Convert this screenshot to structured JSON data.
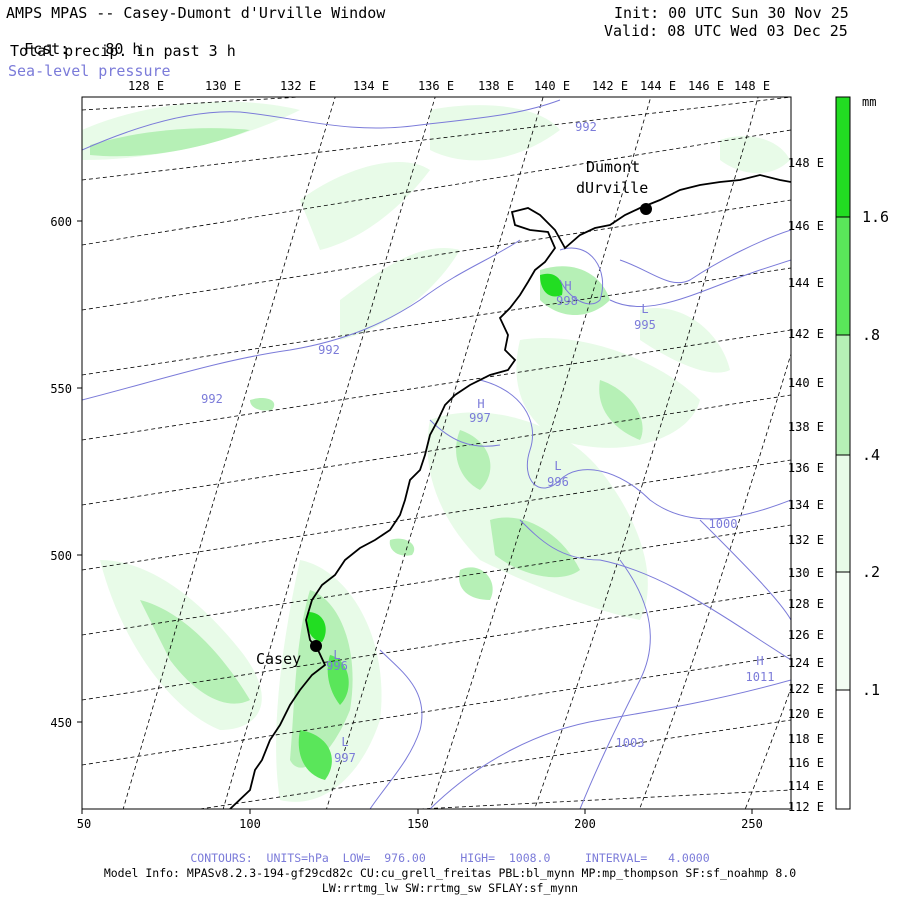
{
  "header": {
    "title": "AMPS MPAS -- Casey-Dumont d'Urville Window",
    "forecast_label": "Fcst:",
    "forecast_value": "80 h",
    "init": "Init: 00 UTC Sun 30 Nov 25",
    "valid": "Valid: 08 UTC Wed 03 Dec 25",
    "field_primary": "Total precip. in past 3 h",
    "field_secondary": "Sea-level pressure"
  },
  "colors": {
    "contour": "#7b7bd9",
    "coast": "#000000",
    "precip_light": "#e8fbe8",
    "precip_mid": "#b6f0b6",
    "precip_high": "#5ae65a",
    "precip_max": "#22dd22"
  },
  "map": {
    "top_lon_labels": [
      "128 E",
      "130 E",
      "132 E",
      "134 E",
      "136 E",
      "138 E",
      "140 E",
      "142 E",
      "144 E",
      "146 E",
      "148 E"
    ],
    "right_lon_labels": [
      "148 E",
      "146 E",
      "144 E",
      "142 E",
      "140 E",
      "138 E",
      "136 E",
      "134 E",
      "132 E",
      "130 E",
      "128 E",
      "126 E",
      "124 E",
      "122 E",
      "120 E",
      "118 E",
      "116 E",
      "114 E",
      "112 E"
    ],
    "x_ticks": [
      "50",
      "100",
      "150",
      "200",
      "250"
    ],
    "y_ticks": [
      "600",
      "550",
      "500",
      "450"
    ],
    "stations": [
      {
        "name": "Casey",
        "label": "Casey"
      },
      {
        "name": "Dumont",
        "label_line1": "Dumont",
        "label_line2": "dUrville"
      }
    ],
    "pressure_labels": [
      {
        "kind": "",
        "value": "992"
      },
      {
        "kind": "",
        "value": "992"
      },
      {
        "kind": "",
        "value": "992"
      },
      {
        "kind": "H",
        "value": "998"
      },
      {
        "kind": "L",
        "value": "995"
      },
      {
        "kind": "H",
        "value": "997"
      },
      {
        "kind": "L",
        "value": "996"
      },
      {
        "kind": "",
        "value": "1000"
      },
      {
        "kind": "L",
        "value": "996"
      },
      {
        "kind": "H",
        "value": "1011"
      },
      {
        "kind": "L",
        "value": "997"
      },
      {
        "kind": "",
        "value": "1003"
      }
    ]
  },
  "colorbar": {
    "unit": "mm",
    "labels": [
      "1.6",
      ".8",
      ".4",
      ".2",
      ".1"
    ]
  },
  "footer": {
    "contours": "CONTOURS:  UNITS=hPa  LOW=  976.00     HIGH=  1008.0     INTERVAL=   4.0000",
    "model_info": "Model Info: MPASv8.2.3-194-gf29cd82c CU:cu_grell_freitas PBL:bl_mynn MP:mp_thompson SF:sf_noahmp 8.0",
    "model_info2": "LW:rrtmg_lw SW:rrtmg_sw SFLAY:sf_mynn"
  }
}
